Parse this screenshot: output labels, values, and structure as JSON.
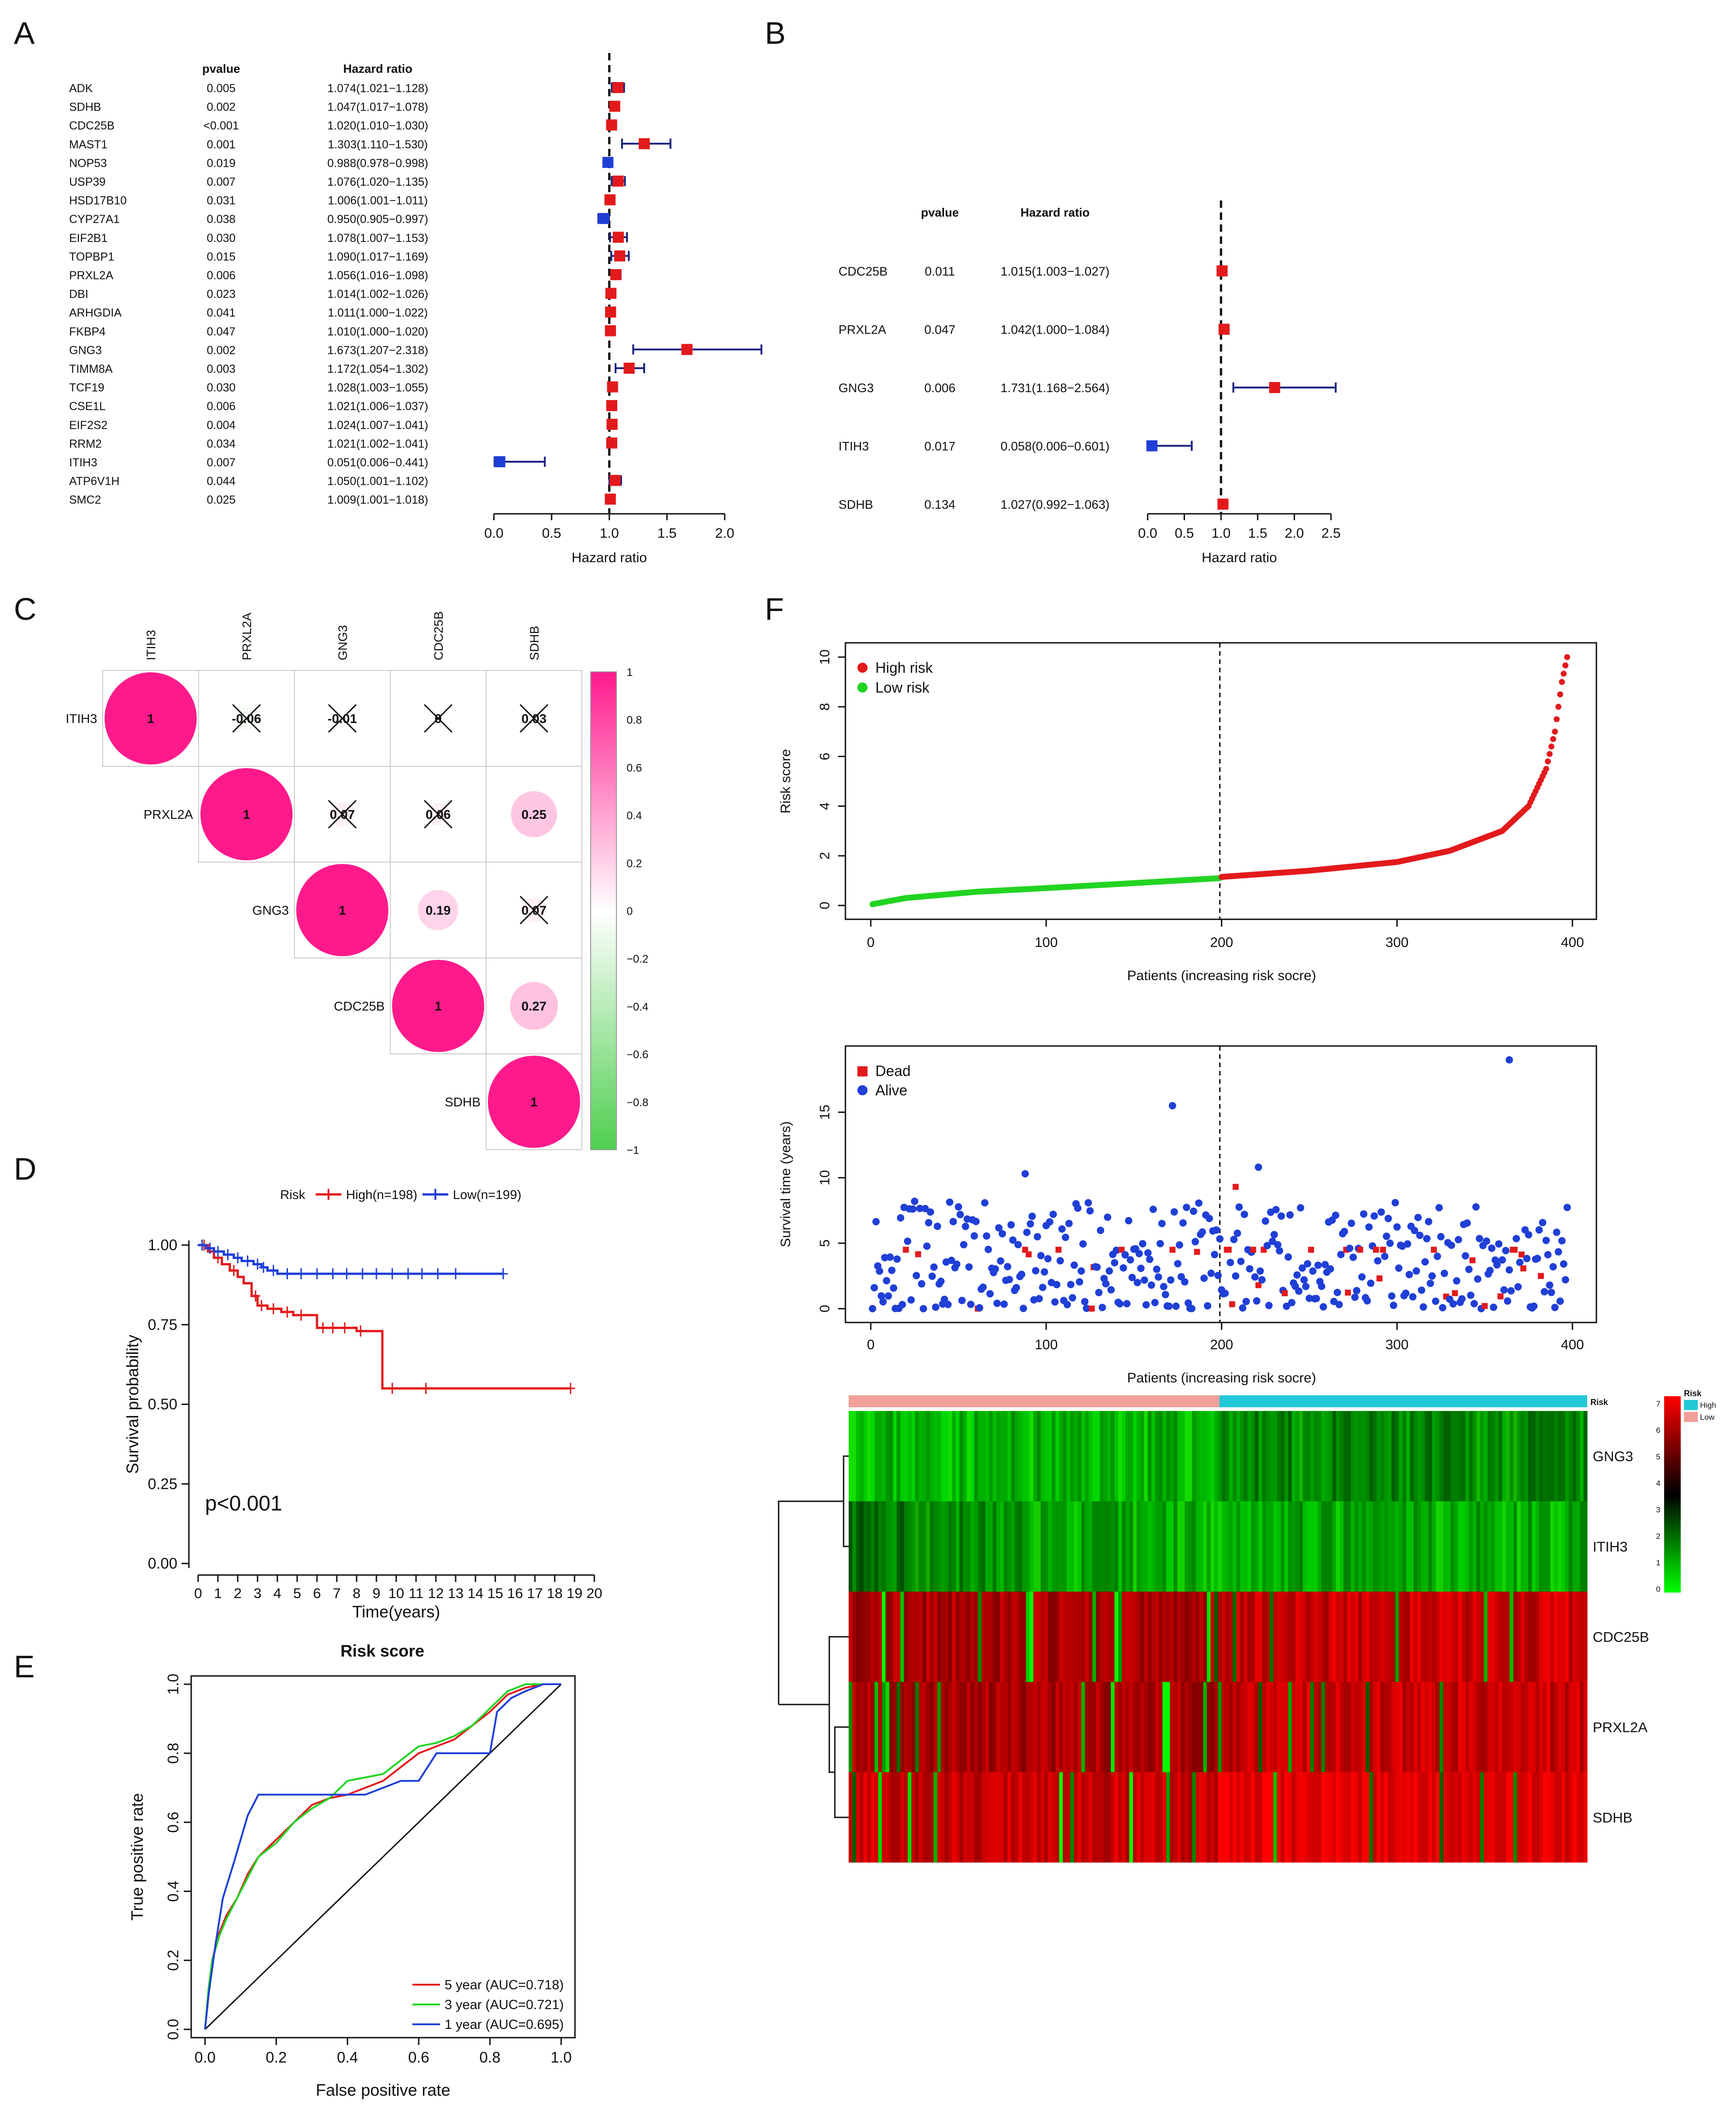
{
  "panels": [
    {
      "id": "A",
      "letter": "A",
      "chart_data": {
        "type": "forest",
        "col_headers": [
          "pvalue",
          "Hazard ratio"
        ],
        "genes": [
          "ADK",
          "SDHB",
          "CDC25B",
          "MAST1",
          "NOP53",
          "USP39",
          "HSD17B10",
          "CYP27A1",
          "EIF2B1",
          "TOPBP1",
          "PRXL2A",
          "DBI",
          "ARHGDIA",
          "FKBP4",
          "GNG3",
          "TIMM8A",
          "TCF19",
          "CSE1L",
          "EIF2S2",
          "RRM2",
          "ITIH3",
          "ATP6V1H",
          "SMC2"
        ],
        "pvalues": [
          "0.005",
          "0.002",
          "<0.001",
          "0.001",
          "0.019",
          "0.007",
          "0.031",
          "0.038",
          "0.030",
          "0.015",
          "0.006",
          "0.023",
          "0.041",
          "0.047",
          "0.002",
          "0.003",
          "0.030",
          "0.006",
          "0.004",
          "0.034",
          "0.007",
          "0.044",
          "0.025"
        ],
        "hr_text": [
          "1.074(1.021−1.128)",
          "1.047(1.017−1.078)",
          "1.020(1.010−1.030)",
          "1.303(1.110−1.530)",
          "0.988(0.978−0.998)",
          "1.076(1.020−1.135)",
          "1.006(1.001−1.011)",
          "0.950(0.905−0.997)",
          "1.078(1.007−1.153)",
          "1.090(1.017−1.169)",
          "1.056(1.016−1.098)",
          "1.014(1.002−1.026)",
          "1.011(1.000−1.022)",
          "1.010(1.000−1.020)",
          "1.673(1.207−2.318)",
          "1.172(1.054−1.302)",
          "1.028(1.003−1.055)",
          "1.021(1.006−1.037)",
          "1.024(1.007−1.041)",
          "1.021(1.002−1.041)",
          "0.051(0.006−0.441)",
          "1.050(1.001−1.102)",
          "1.009(1.001−1.018)"
        ],
        "hr": [
          1.074,
          1.047,
          1.02,
          1.303,
          0.988,
          1.076,
          1.006,
          0.95,
          1.078,
          1.09,
          1.056,
          1.014,
          1.011,
          1.01,
          1.673,
          1.172,
          1.028,
          1.021,
          1.024,
          1.021,
          0.051,
          1.05,
          1.009
        ],
        "lower": [
          1.021,
          1.017,
          1.01,
          1.11,
          0.978,
          1.02,
          1.001,
          0.905,
          1.007,
          1.017,
          1.016,
          1.002,
          1.0,
          1.0,
          1.207,
          1.054,
          1.003,
          1.006,
          1.007,
          1.002,
          0.006,
          1.001,
          1.001
        ],
        "upper": [
          1.128,
          1.078,
          1.03,
          1.53,
          0.998,
          1.135,
          1.011,
          0.997,
          1.153,
          1.169,
          1.098,
          1.026,
          1.022,
          1.02,
          2.318,
          1.302,
          1.055,
          1.037,
          1.041,
          1.041,
          0.441,
          1.102,
          1.018
        ],
        "xticks": [
          "0.0",
          "0.5",
          "1.0",
          "1.5",
          "2.0"
        ],
        "xlim": [
          0,
          2.0
        ],
        "xlabel": "Hazard ratio",
        "colors": {
          "above": "#e31a1c",
          "below": "#1f3fd6",
          "ci": "#1a237e"
        }
      }
    },
    {
      "id": "B",
      "letter": "B",
      "chart_data": {
        "type": "forest",
        "col_headers": [
          "pvalue",
          "Hazard ratio"
        ],
        "genes": [
          "CDC25B",
          "PRXL2A",
          "GNG3",
          "ITIH3",
          "SDHB"
        ],
        "pvalues": [
          "0.011",
          "0.047",
          "0.006",
          "0.017",
          "0.134"
        ],
        "hr_text": [
          "1.015(1.003−1.027)",
          "1.042(1.000−1.084)",
          "1.731(1.168−2.564)",
          "0.058(0.006−0.601)",
          "1.027(0.992−1.063)"
        ],
        "hr": [
          1.015,
          1.042,
          1.731,
          0.058,
          1.027
        ],
        "lower": [
          1.003,
          1.0,
          1.168,
          0.006,
          0.992
        ],
        "upper": [
          1.027,
          1.084,
          2.564,
          0.601,
          1.063
        ],
        "xticks": [
          "0.0",
          "0.5",
          "1.0",
          "1.5",
          "2.0",
          "2.5"
        ],
        "xlim": [
          0,
          2.5
        ],
        "xlabel": "Hazard ratio",
        "colors": {
          "above": "#e31a1c",
          "below": "#1f3fd6",
          "ci": "#1a237e"
        }
      }
    },
    {
      "id": "C",
      "letter": "C",
      "chart_data": {
        "type": "heatmap",
        "labels": [
          "ITIH3",
          "PRXL2A",
          "GNG3",
          "CDC25B",
          "SDHB"
        ],
        "cells": [
          {
            "r": 0,
            "c": 0,
            "text": "1",
            "v": 1,
            "crossed": false
          },
          {
            "r": 0,
            "c": 1,
            "text": "-0.06",
            "v": -0.06,
            "crossed": true
          },
          {
            "r": 0,
            "c": 2,
            "text": "-0.01",
            "v": -0.01,
            "crossed": true
          },
          {
            "r": 0,
            "c": 3,
            "text": "0",
            "v": 0,
            "crossed": true
          },
          {
            "r": 0,
            "c": 4,
            "text": "0.03",
            "v": 0.03,
            "crossed": true
          },
          {
            "r": 1,
            "c": 1,
            "text": "1",
            "v": 1,
            "crossed": false
          },
          {
            "r": 1,
            "c": 2,
            "text": "0.07",
            "v": 0.07,
            "crossed": true
          },
          {
            "r": 1,
            "c": 3,
            "text": "0.06",
            "v": 0.06,
            "crossed": true
          },
          {
            "r": 1,
            "c": 4,
            "text": "0.25",
            "v": 0.25,
            "crossed": false
          },
          {
            "r": 2,
            "c": 2,
            "text": "1",
            "v": 1,
            "crossed": false
          },
          {
            "r": 2,
            "c": 3,
            "text": "0.19",
            "v": 0.19,
            "crossed": false
          },
          {
            "r": 2,
            "c": 4,
            "text": "0.07",
            "v": 0.07,
            "crossed": true
          },
          {
            "r": 3,
            "c": 3,
            "text": "1",
            "v": 1,
            "crossed": false
          },
          {
            "r": 3,
            "c": 4,
            "text": "0.27",
            "v": 0.27,
            "crossed": false
          },
          {
            "r": 4,
            "c": 4,
            "text": "1",
            "v": 1,
            "crossed": false
          }
        ],
        "legend_ticks": [
          "1",
          "0.8",
          "0.6",
          "0.4",
          "0.2",
          "0",
          "−0.2",
          "−0.4",
          "−0.6",
          "−0.8",
          "−1"
        ],
        "colors": {
          "pos": "#ff1a8c",
          "neg": "#4fcf4f"
        }
      }
    },
    {
      "id": "D",
      "letter": "D",
      "chart_data": {
        "type": "line",
        "legend_title": "Risk",
        "series": [
          {
            "name": "High(n=198)",
            "color": "#e31a1c",
            "x": [
              0,
              0.5,
              0.8,
              1.2,
              1.6,
              2,
              2.3,
              2.7,
              3.0,
              3.5,
              4.2,
              4.8,
              5.5,
              6.0,
              7,
              8,
              9.2,
              9.3,
              12,
              16,
              18.8
            ],
            "y": [
              1.0,
              0.98,
              0.96,
              0.94,
              0.92,
              0.9,
              0.88,
              0.84,
              0.81,
              0.8,
              0.79,
              0.78,
              0.78,
              0.74,
              0.74,
              0.73,
              0.73,
              0.55,
              0.55,
              0.55,
              0.55
            ],
            "censor_x": [
              0.3,
              1.0,
              1.8,
              2.9,
              3.2,
              3.8,
              4.5,
              5.2,
              6.3,
              6.8,
              7.4,
              8.2,
              9.8,
              11.5,
              18.8
            ]
          },
          {
            "name": "Low(n=199)",
            "color": "#1f3fd6",
            "x": [
              0,
              0.4,
              0.8,
              1.3,
              1.8,
              2.2,
              2.8,
              3.2,
              3.5,
              4,
              5,
              7,
              10,
              15.4
            ],
            "y": [
              1.0,
              0.99,
              0.98,
              0.97,
              0.96,
              0.95,
              0.94,
              0.93,
              0.92,
              0.91,
              0.91,
              0.91,
              0.91,
              0.91
            ],
            "censor_x": [
              0.2,
              0.6,
              1.0,
              1.5,
              2.0,
              2.5,
              3.0,
              3.3,
              3.8,
              4.5,
              5.2,
              6.0,
              6.8,
              7.5,
              8.3,
              9.0,
              9.8,
              10.6,
              11.3,
              12.1,
              13.0,
              15.4
            ]
          }
        ],
        "xticks": [
          "0",
          "1",
          "2",
          "3",
          "4",
          "5",
          "6",
          "7",
          "8",
          "9",
          "10",
          "11",
          "12",
          "13",
          "14",
          "15",
          "16",
          "17",
          "18",
          "19",
          "20"
        ],
        "yticks": [
          "0.00",
          "0.25",
          "0.50",
          "0.75",
          "1.00"
        ],
        "xlim": [
          0,
          20
        ],
        "ylim": [
          0,
          1
        ],
        "xlabel": "Time(years)",
        "ylabel": "Survival probability",
        "annotation": "p<0.001"
      }
    },
    {
      "id": "E",
      "letter": "E",
      "chart_data": {
        "type": "line",
        "title": "Risk score",
        "series": [
          {
            "name": "5 year (AUC=0.718)",
            "color": "#e31a1c",
            "x": [
              0,
              0.01,
              0.02,
              0.04,
              0.06,
              0.09,
              0.12,
              0.15,
              0.2,
              0.25,
              0.3,
              0.35,
              0.4,
              0.45,
              0.5,
              0.55,
              0.6,
              0.65,
              0.7,
              0.75,
              0.8,
              0.85,
              0.9,
              0.95,
              1.0
            ],
            "y": [
              0,
              0.1,
              0.2,
              0.28,
              0.33,
              0.38,
              0.45,
              0.5,
              0.55,
              0.6,
              0.65,
              0.67,
              0.68,
              0.7,
              0.72,
              0.76,
              0.8,
              0.82,
              0.84,
              0.88,
              0.92,
              0.97,
              0.99,
              1.0,
              1.0
            ]
          },
          {
            "name": "3 year (AUC=0.721)",
            "color": "#22d422",
            "x": [
              0,
              0.01,
              0.02,
              0.04,
              0.06,
              0.09,
              0.12,
              0.15,
              0.2,
              0.25,
              0.3,
              0.35,
              0.4,
              0.45,
              0.5,
              0.55,
              0.6,
              0.65,
              0.7,
              0.75,
              0.8,
              0.85,
              0.9,
              0.95,
              1.0
            ],
            "y": [
              0,
              0.12,
              0.2,
              0.27,
              0.32,
              0.38,
              0.44,
              0.5,
              0.54,
              0.6,
              0.64,
              0.67,
              0.72,
              0.73,
              0.74,
              0.78,
              0.82,
              0.83,
              0.85,
              0.88,
              0.93,
              0.98,
              1.0,
              1.0,
              1.0
            ]
          },
          {
            "name": "1 year (AUC=0.695)",
            "color": "#1f3fd6",
            "x": [
              0,
              0.01,
              0.03,
              0.05,
              0.08,
              0.1,
              0.12,
              0.15,
              0.2,
              0.3,
              0.45,
              0.55,
              0.6,
              0.65,
              0.7,
              0.75,
              0.8,
              0.82,
              0.86,
              0.9,
              0.95,
              1.0
            ],
            "y": [
              0,
              0.1,
              0.25,
              0.38,
              0.48,
              0.55,
              0.62,
              0.68,
              0.68,
              0.68,
              0.68,
              0.72,
              0.72,
              0.8,
              0.8,
              0.8,
              0.8,
              0.92,
              0.96,
              0.98,
              1.0,
              1.0
            ]
          }
        ],
        "xticks": [
          "0.0",
          "0.2",
          "0.4",
          "0.6",
          "0.8",
          "1.0"
        ],
        "yticks": [
          "0.0",
          "0.2",
          "0.4",
          "0.6",
          "0.8",
          "1.0"
        ],
        "xlim": [
          0,
          1
        ],
        "ylim": [
          0,
          1
        ],
        "xlabel": "False positive rate",
        "ylabel": "True positive rate"
      }
    },
    {
      "id": "F",
      "letter": "F",
      "risk_plot": {
        "type": "scatter",
        "n": 397,
        "cutoff": 199,
        "series": [
          {
            "name": "High risk",
            "color": "#e31a1c"
          },
          {
            "name": "Low risk",
            "color": "#22d422"
          }
        ],
        "y_profile": {
          "x": [
            1,
            20,
            60,
            100,
            150,
            199,
            200,
            250,
            300,
            330,
            360,
            375,
            385,
            390,
            394,
            397
          ],
          "y": [
            0.05,
            0.3,
            0.55,
            0.7,
            0.9,
            1.1,
            1.15,
            1.4,
            1.75,
            2.2,
            3.0,
            4.0,
            5.5,
            7.0,
            9.0,
            10.0
          ]
        },
        "xticks": [
          "0",
          "100",
          "200",
          "300",
          "400"
        ],
        "yticks": [
          "0",
          "2",
          "4",
          "6",
          "8",
          "10"
        ],
        "xlim": [
          0,
          400
        ],
        "ylim": [
          0,
          10
        ],
        "xlabel": "Patients (increasing risk socre)",
        "ylabel": "Risk score"
      },
      "survival_plot": {
        "type": "scatter",
        "series": [
          {
            "name": "Dead",
            "color": "#e31a1c"
          },
          {
            "name": "Alive",
            "color": "#1f3fd6"
          }
        ],
        "xticks": [
          "0",
          "100",
          "200",
          "300",
          "400"
        ],
        "yticks": [
          "0",
          "5",
          "10",
          "15"
        ],
        "xlim": [
          0,
          400
        ],
        "ylim": [
          0,
          19
        ],
        "xlabel": "Patients (increasing risk socre)",
        "ylabel": "Survival time (years)",
        "highlights": [
          {
            "x": 172,
            "y": 15.5,
            "s": "alive"
          },
          {
            "x": 364,
            "y": 19.0,
            "s": "alive"
          },
          {
            "x": 221,
            "y": 10.8,
            "s": "alive"
          },
          {
            "x": 208,
            "y": 9.3,
            "s": "dead"
          },
          {
            "x": 88,
            "y": 10.3,
            "s": "alive"
          }
        ]
      },
      "expression_heatmap": {
        "type": "heatmap",
        "genes": [
          "GNG3",
          "ITIH3",
          "CDC25B",
          "PRXL2A",
          "SDHB"
        ],
        "risk_bar_label": "Risk",
        "legend_title": "Risk",
        "legend_items": [
          "High",
          "Low"
        ],
        "colors": {
          "High": "#22c8d8",
          "Low": "#f2a09a"
        },
        "scale_ticks": [
          "7",
          "6",
          "5",
          "4",
          "3",
          "2",
          "1",
          "0"
        ]
      }
    }
  ]
}
